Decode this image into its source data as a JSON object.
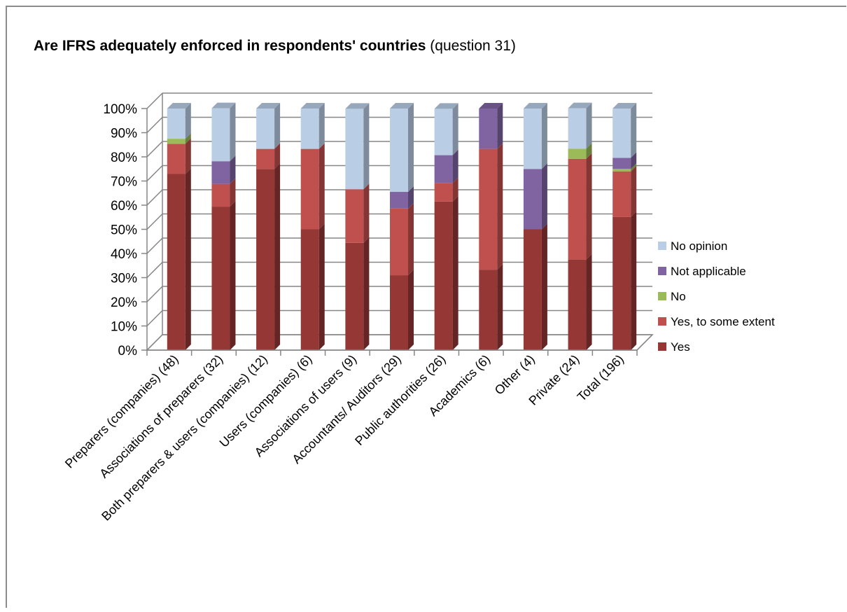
{
  "chart_data": {
    "type": "bar",
    "stacked": true,
    "three_d": true,
    "title_bold": "Are IFRS adequately enforced in respondents' countries",
    "title_normal": " (question 31)",
    "ylim": [
      0,
      100
    ],
    "y_ticks": [
      "0%",
      "10%",
      "20%",
      "30%",
      "40%",
      "50%",
      "60%",
      "70%",
      "80%",
      "90%",
      "100%"
    ],
    "grid": true,
    "legend_position": "right",
    "categories": [
      "Preparers (companies) (48)",
      "Associations of preparers (32)",
      "Both preparers & users (companies) (12)",
      "Users (companies) (6)",
      "Associations of users (9)",
      "Accountants/ Auditors (29)",
      "Public authorities (26)",
      "Academics (6)",
      "Other (4)",
      "Private (24)",
      "Total (196)"
    ],
    "series": [
      {
        "name": "Yes",
        "color": "#953735",
        "values": [
          72.9,
          59.4,
          75.0,
          50.0,
          44.4,
          31.0,
          61.5,
          33.3,
          50.0,
          37.5,
          55.1
        ]
      },
      {
        "name": "Yes, to some extent",
        "color": "#c0504d",
        "values": [
          12.5,
          9.4,
          8.3,
          33.3,
          22.2,
          27.6,
          7.7,
          50.0,
          0,
          41.7,
          18.9
        ]
      },
      {
        "name": "No",
        "color": "#9bbb59",
        "values": [
          2.1,
          0,
          0,
          0,
          0,
          0,
          0,
          0,
          0,
          4.2,
          1.0
        ]
      },
      {
        "name": "Not applicable",
        "color": "#8064a2",
        "values": [
          0,
          9.4,
          0,
          0,
          0,
          6.9,
          11.5,
          16.7,
          25.0,
          0,
          4.6
        ]
      },
      {
        "name": "No opinion",
        "color": "#b9cde5",
        "values": [
          12.5,
          21.9,
          16.7,
          16.7,
          33.3,
          34.5,
          19.2,
          0,
          25.0,
          16.7,
          20.4
        ]
      }
    ]
  }
}
